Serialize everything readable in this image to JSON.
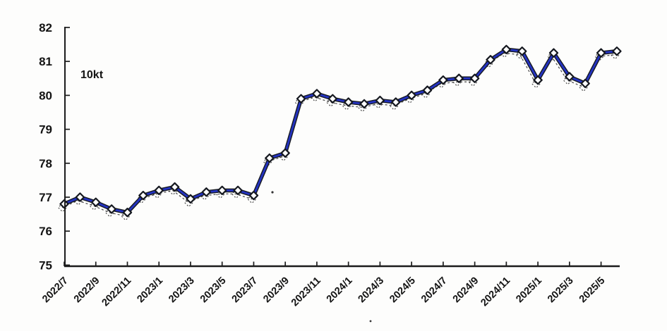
{
  "page": {
    "background_color": "#fdfdfc",
    "description": "scanned monthly line chart, no title, no legend"
  },
  "chart_data": {
    "type": "line",
    "title": "",
    "unit_label": "10kt",
    "legend_position": "none",
    "grid": false,
    "x": [
      "2022/7",
      "2022/8",
      "2022/9",
      "2022/10",
      "2022/11",
      "2022/12",
      "2023/1",
      "2023/2",
      "2023/3",
      "2023/4",
      "2023/5",
      "2023/6",
      "2023/7",
      "2023/8",
      "2023/9",
      "2023/10",
      "2023/11",
      "2023/12",
      "2024/1",
      "2024/2",
      "2024/3",
      "2024/4",
      "2024/5",
      "2024/6",
      "2024/7",
      "2024/8",
      "2024/9",
      "2024/10",
      "2024/11",
      "2024/12",
      "2025/1",
      "2025/2",
      "2025/3",
      "2025/4",
      "2025/5",
      "2025/6"
    ],
    "values": [
      76.8,
      77.0,
      76.85,
      76.65,
      76.55,
      77.05,
      77.2,
      77.3,
      76.95,
      77.15,
      77.2,
      77.2,
      77.05,
      78.15,
      78.3,
      79.9,
      80.05,
      79.9,
      79.8,
      79.75,
      79.85,
      79.8,
      80.0,
      80.15,
      80.45,
      80.5,
      80.5,
      81.05,
      81.35,
      81.3,
      80.45,
      81.25,
      80.55,
      80.35,
      81.25,
      81.3
    ],
    "x_tick_labels": [
      "2022/7",
      "2022/9",
      "2022/11",
      "2023/1",
      "2023/3",
      "2023/5",
      "2023/7",
      "2023/9",
      "2023/11",
      "2024/1",
      "2024/3",
      "2024/5",
      "2024/7",
      "2024/9",
      "2024/11",
      "2025/1",
      "2025/3",
      "2025/5"
    ],
    "y_ticks": [
      82,
      81,
      80,
      79,
      78,
      77,
      76,
      75
    ],
    "ylim": [
      75,
      82
    ],
    "style": {
      "line_color": "#2433c0",
      "line_outline_color": "#15181f",
      "marker_shape": "diamond",
      "marker_fill": "#ffffff",
      "marker_border": "#15181f",
      "ghost_dash_color": "#2b2b2b",
      "axis_color": "#1c1c1c",
      "label_color": "#141414"
    }
  }
}
